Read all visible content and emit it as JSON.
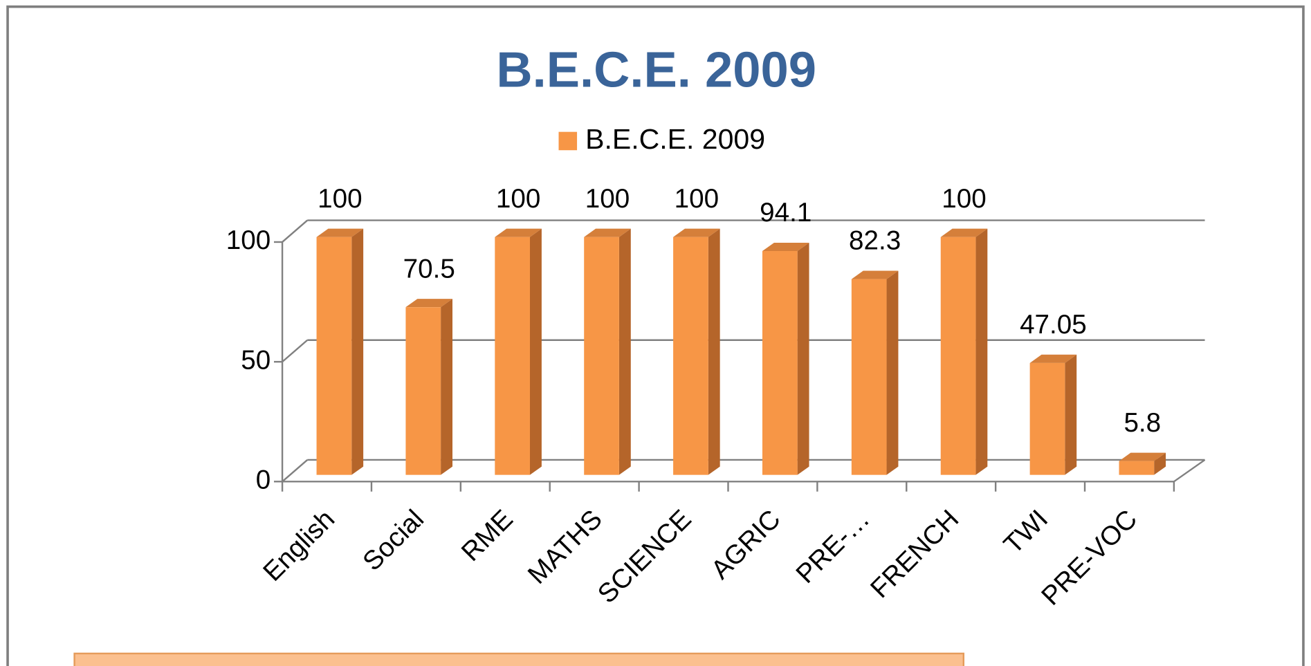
{
  "chart_data": {
    "type": "bar3d",
    "title": "B.E.C.E. 2009",
    "categories": [
      "English",
      "Social",
      "RME",
      "MATHS",
      "SCIENCE",
      "AGRIC",
      "PRE-…",
      "FRENCH",
      "TWI",
      "PRE-VOC"
    ],
    "series": [
      {
        "name": "B.E.C.E. 2009",
        "color": "#f79646",
        "values": [
          100,
          70.5,
          100,
          100,
          100,
          94.1,
          82.3,
          100,
          47.05,
          5.8
        ]
      }
    ],
    "ylim": [
      0,
      100
    ],
    "yticks": [
      0,
      50,
      100
    ],
    "grid": true,
    "legend": "top"
  }
}
